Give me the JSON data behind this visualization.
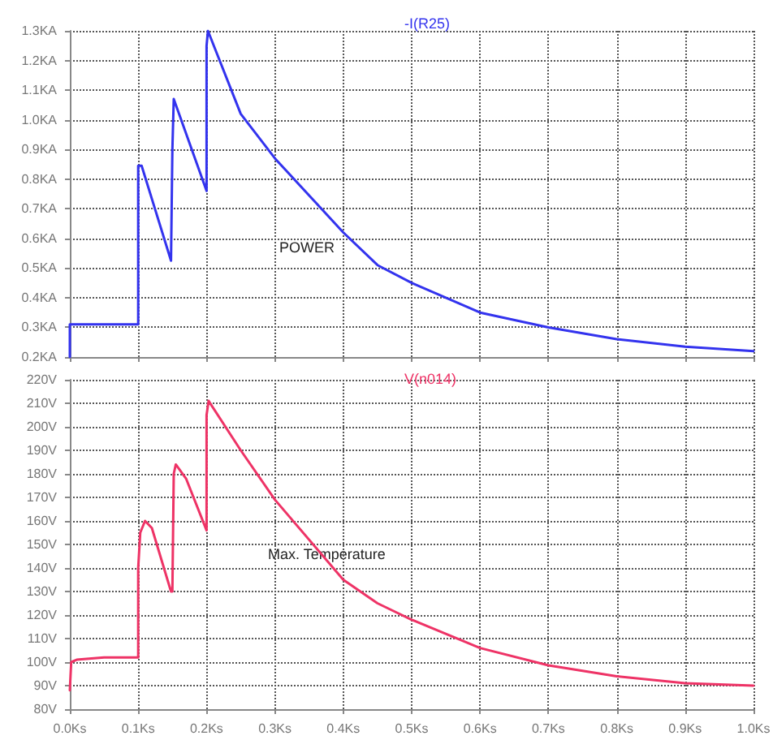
{
  "chart_data": [
    {
      "type": "line",
      "title": "-I(R25)",
      "annotations": [
        "POWER"
      ],
      "grid": true,
      "tick_labels": "y",
      "line_style": "solid",
      "xlim": [
        0,
        1.0
      ],
      "xticks": [
        0,
        0.1,
        0.2,
        0.3,
        0.4,
        0.5,
        0.6,
        0.7,
        0.8,
        0.9,
        1.0
      ],
      "ylim": [
        0.2,
        1.3
      ],
      "yticks": [
        {
          "value": 0.2,
          "label": "0.2KA"
        },
        {
          "value": 0.3,
          "label": "0.3KA"
        },
        {
          "value": 0.4,
          "label": "0.4KA"
        },
        {
          "value": 0.5,
          "label": "0.5KA"
        },
        {
          "value": 0.6,
          "label": "0.6KA"
        },
        {
          "value": 0.7,
          "label": "0.7KA"
        },
        {
          "value": 0.8,
          "label": "0.8KA"
        },
        {
          "value": 0.9,
          "label": "0.9KA"
        },
        {
          "value": 1.0,
          "label": "1.0KA"
        },
        {
          "value": 1.1,
          "label": "1.1KA"
        },
        {
          "value": 1.2,
          "label": "1.2KA"
        },
        {
          "value": 1.3,
          "label": "1.3KA"
        }
      ],
      "series": [
        {
          "color": "#3333ee",
          "x": [
            0,
            0,
            0.1,
            0.1,
            0.105,
            0.148,
            0.15,
            0.152,
            0.2,
            0.2,
            0.202,
            0.25,
            0.3,
            0.4,
            0.45,
            0.5,
            0.6,
            0.7,
            0.8,
            0.9,
            1.0
          ],
          "values": [
            0.2,
            0.31,
            0.31,
            0.845,
            0.845,
            0.525,
            0.9,
            1.07,
            0.76,
            1.25,
            1.3,
            1.02,
            0.87,
            0.62,
            0.51,
            0.45,
            0.35,
            0.3,
            0.26,
            0.235,
            0.22
          ]
        }
      ]
    },
    {
      "type": "line",
      "title": "V(n014)",
      "annotations": [
        "Max. Temperature"
      ],
      "grid": true,
      "line_style": "solid",
      "xlim": [
        0,
        1.0
      ],
      "xticks": [
        {
          "value": 0,
          "label": "0.0Ks"
        },
        {
          "value": 0.1,
          "label": "0.1Ks"
        },
        {
          "value": 0.2,
          "label": "0.2Ks"
        },
        {
          "value": 0.3,
          "label": "0.3Ks"
        },
        {
          "value": 0.4,
          "label": "0.4Ks"
        },
        {
          "value": 0.5,
          "label": "0.5Ks"
        },
        {
          "value": 0.6,
          "label": "0.6Ks"
        },
        {
          "value": 0.7,
          "label": "0.7Ks"
        },
        {
          "value": 0.8,
          "label": "0.8Ks"
        },
        {
          "value": 0.9,
          "label": "0.9Ks"
        },
        {
          "value": 1.0,
          "label": "1.0Ks"
        }
      ],
      "ylim": [
        80,
        220
      ],
      "yticks": [
        {
          "value": 80,
          "label": "80V"
        },
        {
          "value": 90,
          "label": "90V"
        },
        {
          "value": 100,
          "label": "100V"
        },
        {
          "value": 110,
          "label": "110V"
        },
        {
          "value": 120,
          "label": "120V"
        },
        {
          "value": 130,
          "label": "130V"
        },
        {
          "value": 140,
          "label": "140V"
        },
        {
          "value": 150,
          "label": "150V"
        },
        {
          "value": 160,
          "label": "160V"
        },
        {
          "value": 170,
          "label": "170V"
        },
        {
          "value": 180,
          "label": "180V"
        },
        {
          "value": 190,
          "label": "190V"
        },
        {
          "value": 200,
          "label": "200V"
        },
        {
          "value": 210,
          "label": "210V"
        },
        {
          "value": 220,
          "label": "220V"
        }
      ],
      "series": [
        {
          "color": "#ee3366",
          "x": [
            0,
            0.002,
            0.01,
            0.05,
            0.1,
            0.1,
            0.103,
            0.11,
            0.12,
            0.148,
            0.15,
            0.152,
            0.155,
            0.17,
            0.2,
            0.2,
            0.203,
            0.25,
            0.3,
            0.4,
            0.45,
            0.5,
            0.6,
            0.7,
            0.8,
            0.9,
            1.0
          ],
          "values": [
            88,
            100,
            101,
            102,
            102,
            140,
            155,
            160,
            157,
            130,
            130,
            180,
            184,
            178,
            156,
            205,
            211,
            190,
            169,
            135,
            125,
            118,
            106,
            98.6,
            94,
            91,
            90
          ]
        }
      ]
    }
  ]
}
